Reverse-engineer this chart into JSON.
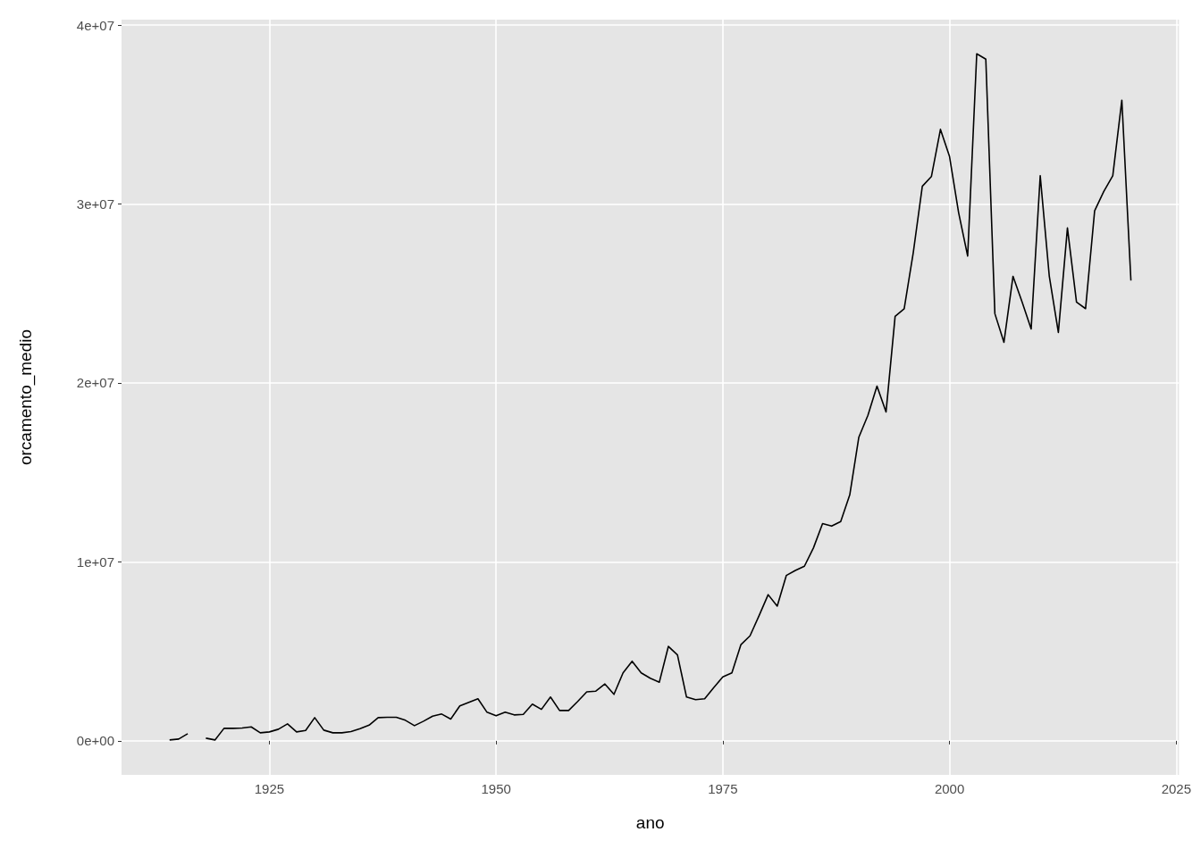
{
  "chart_data": {
    "type": "line",
    "xlabel": "ano",
    "ylabel": "orcamento_medio",
    "x": [
      1914,
      1915,
      1916,
      1917,
      1918,
      1919,
      1920,
      1921,
      1922,
      1923,
      1924,
      1925,
      1926,
      1927,
      1928,
      1929,
      1930,
      1931,
      1932,
      1933,
      1934,
      1935,
      1936,
      1937,
      1938,
      1939,
      1940,
      1941,
      1942,
      1943,
      1944,
      1945,
      1946,
      1947,
      1948,
      1949,
      1950,
      1951,
      1952,
      1953,
      1954,
      1955,
      1956,
      1957,
      1958,
      1959,
      1960,
      1961,
      1962,
      1963,
      1964,
      1965,
      1966,
      1967,
      1968,
      1969,
      1970,
      1971,
      1972,
      1973,
      1974,
      1975,
      1976,
      1977,
      1978,
      1979,
      1980,
      1981,
      1982,
      1983,
      1984,
      1985,
      1986,
      1987,
      1988,
      1989,
      1990,
      1991,
      1992,
      1993,
      1994,
      1995,
      1996,
      1997,
      1998,
      1999,
      2000,
      2001,
      2002,
      2003,
      2004,
      2005,
      2006,
      2007,
      2008,
      2009,
      2010,
      2011,
      2012,
      2013,
      2014,
      2015,
      2016,
      2017,
      2018,
      2019,
      2020
    ],
    "series": [
      {
        "color": "#000000",
        "values": [
          50000,
          100000,
          400000,
          null,
          150000,
          50000,
          700000,
          700000,
          720000,
          780000,
          450000,
          500000,
          650000,
          950000,
          500000,
          580000,
          1300000,
          600000,
          450000,
          450000,
          520000,
          680000,
          880000,
          1300000,
          1320000,
          1320000,
          1150000,
          850000,
          1100000,
          1380000,
          1500000,
          1220000,
          1950000,
          2150000,
          2350000,
          1600000,
          1400000,
          1600000,
          1450000,
          1480000,
          2050000,
          1760000,
          2450000,
          1700000,
          1700000,
          2200000,
          2740000,
          2780000,
          3180000,
          2600000,
          3800000,
          4450000,
          3800000,
          3500000,
          3280000,
          5280000,
          4800000,
          2450000,
          2300000,
          2350000,
          2980000,
          3570000,
          3800000,
          5380000,
          5870000,
          7000000,
          8170000,
          7530000,
          9240000,
          9520000,
          9760000,
          10790000,
          12140000,
          12000000,
          12250000,
          13750000,
          16970000,
          18190000,
          19820000,
          18380000,
          23720000,
          24150000,
          27280000,
          30990000,
          31530000,
          34170000,
          32650000,
          29520000,
          27090000,
          38390000,
          38090000,
          23870000,
          22270000,
          25960000,
          24520000,
          23020000,
          31580000,
          25960000,
          22820000,
          28660000,
          24520000,
          24150000,
          29620000,
          30690000,
          31580000,
          35800000,
          25720000
        ]
      }
    ],
    "xlim": [
      1908.7,
      2025.3
    ],
    "xticks": [
      1925,
      1950,
      1975,
      2000,
      2025
    ],
    "ylim": [
      -1900000,
      40300000
    ],
    "yticks": [
      {
        "value": 0,
        "label": "0e+00"
      },
      {
        "value": 10000000,
        "label": "1e+07"
      },
      {
        "value": 20000000,
        "label": "2e+07"
      },
      {
        "value": 30000000,
        "label": "3e+07"
      },
      {
        "value": 40000000,
        "label": "4e+07"
      }
    ],
    "grid": true,
    "marker": "none",
    "line_style": "solid"
  }
}
